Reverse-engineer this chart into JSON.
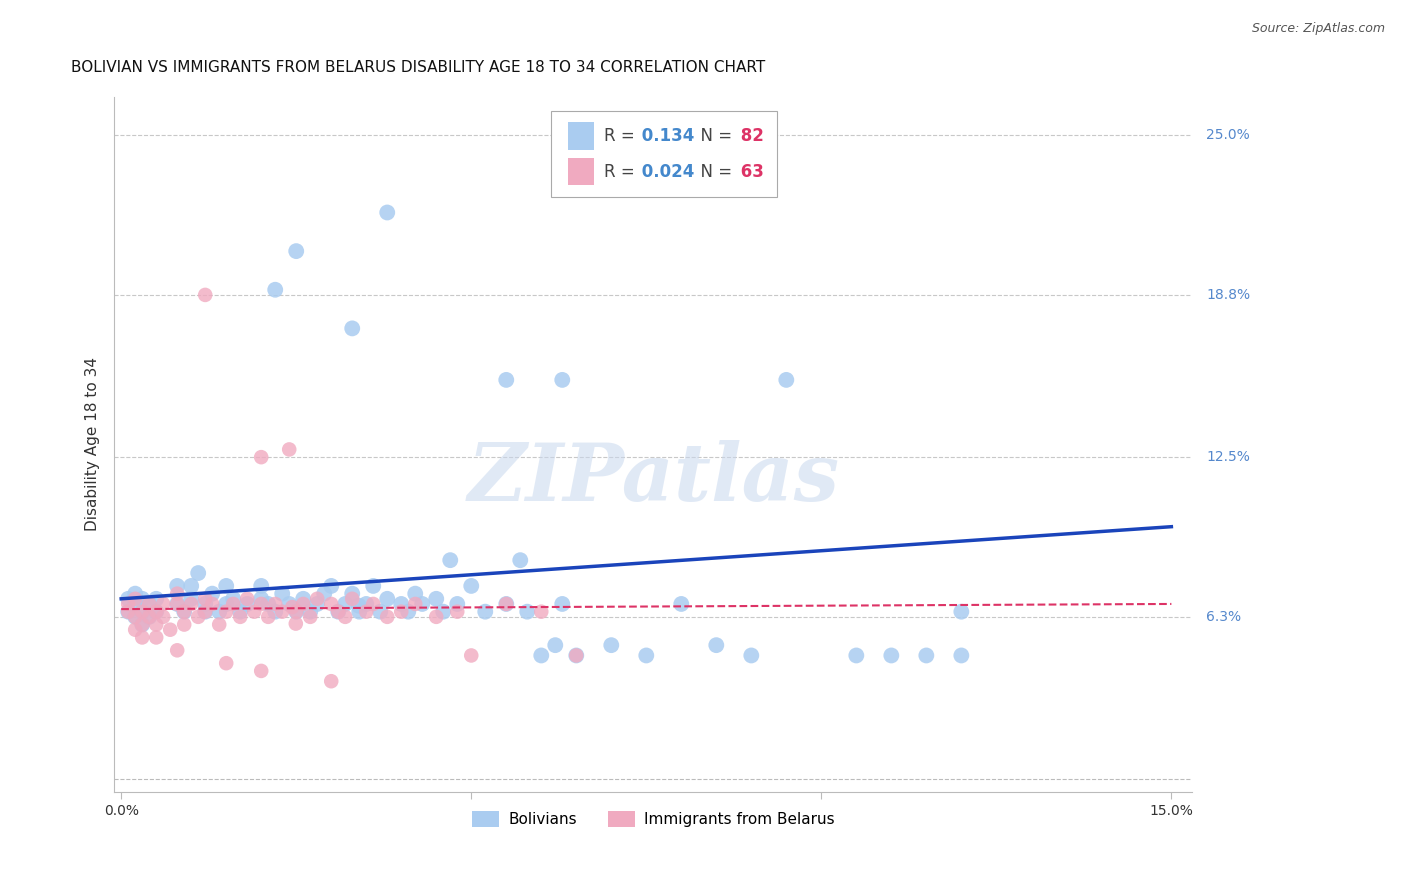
{
  "title": "BOLIVIAN VS IMMIGRANTS FROM BELARUS DISABILITY AGE 18 TO 34 CORRELATION CHART",
  "source": "Source: ZipAtlas.com",
  "ylabel": "Disability Age 18 to 34",
  "xlim": [
    0.0,
    0.15
  ],
  "ylim": [
    0.0,
    0.27
  ],
  "ytick_labels_right": [
    "25.0%",
    "18.8%",
    "12.5%",
    "6.3%"
  ],
  "ytick_values_right": [
    0.25,
    0.188,
    0.125,
    0.063
  ],
  "grid_color": "#c8c8c8",
  "background_color": "#ffffff",
  "bolivian_color": "#aaccf0",
  "belarus_color": "#f0aac0",
  "bolivian_line_color": "#1a44bb",
  "belarus_line_color": "#dd3366",
  "legend_bolivian_label": "Bolivians",
  "legend_belarus_label": "Immigrants from Belarus",
  "R_bolivian": "0.134",
  "N_bolivian": "82",
  "R_belarus": "0.024",
  "N_belarus": "63",
  "title_fontsize": 11,
  "source_fontsize": 9,
  "axis_label_fontsize": 11,
  "tick_fontsize": 10,
  "legend_fontsize": 11
}
